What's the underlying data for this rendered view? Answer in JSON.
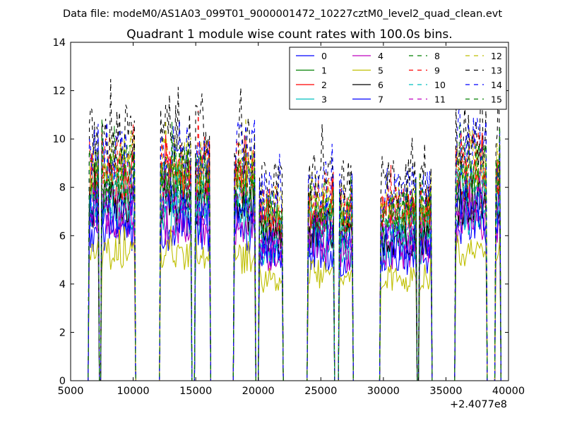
{
  "figure": {
    "suptitle": "Data file: modeM0/AS1A03_099T01_9000001472_10227cztM0_level2_quad_clean.evt"
  },
  "chart_data": {
    "type": "line",
    "title": "Quadrant 1 module wise count rates with 100.0s bins.",
    "xlabel": "",
    "ylabel": "",
    "x_offset_label": "+2.4077e8",
    "xlim": [
      5000,
      40000
    ],
    "ylim": [
      0,
      14
    ],
    "xticks": [
      5000,
      10000,
      15000,
      20000,
      25000,
      30000,
      35000,
      40000
    ],
    "xtick_labels": [
      "5000",
      "10000",
      "15000",
      "20000",
      "25000",
      "30000",
      "35000",
      "40000"
    ],
    "yticks": [
      0,
      2,
      4,
      6,
      8,
      10,
      12,
      14
    ],
    "ytick_labels": [
      "0",
      "2",
      "4",
      "6",
      "8",
      "10",
      "12",
      "14"
    ],
    "legend": {
      "position": "top-right",
      "columns": 4
    },
    "bin_width": 100,
    "intervals": [
      [
        6500,
        7200
      ],
      [
        7500,
        10100
      ],
      [
        12200,
        14600
      ],
      [
        15000,
        16100
      ],
      [
        18100,
        19700
      ],
      [
        20100,
        21900
      ],
      [
        24000,
        26000
      ],
      [
        26500,
        27500
      ],
      [
        29800,
        32600
      ],
      [
        32900,
        33800
      ],
      [
        35800,
        38200
      ],
      [
        39000,
        39300
      ]
    ],
    "level_profile": [
      {
        "range": [
          6500,
          10100
        ],
        "level": 1.0
      },
      {
        "range": [
          12200,
          16100
        ],
        "level": 1.0
      },
      {
        "range": [
          18100,
          19700
        ],
        "level": 0.98
      },
      {
        "range": [
          20100,
          21900
        ],
        "level": 0.8
      },
      {
        "range": [
          24000,
          26000
        ],
        "level": 0.85
      },
      {
        "range": [
          26500,
          27500
        ],
        "level": 0.8
      },
      {
        "range": [
          29800,
          33800
        ],
        "level": 0.82
      },
      {
        "range": [
          35800,
          38200
        ],
        "level": 1.02
      },
      {
        "range": [
          39000,
          39300
        ],
        "level": 1.0
      }
    ],
    "series": [
      {
        "name": "0",
        "color": "#0000ff",
        "dash": "solid",
        "base": 6.2
      },
      {
        "name": "1",
        "color": "#008000",
        "dash": "solid",
        "base": 8.0
      },
      {
        "name": "2",
        "color": "#ff0000",
        "dash": "solid",
        "base": 8.3
      },
      {
        "name": "3",
        "color": "#00bfbf",
        "dash": "solid",
        "base": 6.8
      },
      {
        "name": "4",
        "color": "#bf00bf",
        "dash": "solid",
        "base": 6.5
      },
      {
        "name": "5",
        "color": "#bfbf00",
        "dash": "solid",
        "base": 5.2
      },
      {
        "name": "6",
        "color": "#000000",
        "dash": "solid",
        "base": 7.3
      },
      {
        "name": "7",
        "color": "#0000ff",
        "dash": "solid",
        "base": 7.0
      },
      {
        "name": "8",
        "color": "#008000",
        "dash": "dashed",
        "base": 8.6
      },
      {
        "name": "9",
        "color": "#ff0000",
        "dash": "dashed",
        "base": 8.9
      },
      {
        "name": "10",
        "color": "#00bfbf",
        "dash": "dashed",
        "base": 7.6
      },
      {
        "name": "11",
        "color": "#bf00bf",
        "dash": "dashed",
        "base": 7.3
      },
      {
        "name": "12",
        "color": "#bfbf00",
        "dash": "dashed",
        "base": 9.0
      },
      {
        "name": "13",
        "color": "#000000",
        "dash": "dashed",
        "base": 10.0
      },
      {
        "name": "14",
        "color": "#0000ff",
        "dash": "dashed",
        "base": 9.5
      },
      {
        "name": "15",
        "color": "#008000",
        "dash": "dashed",
        "base": 8.5
      }
    ]
  }
}
